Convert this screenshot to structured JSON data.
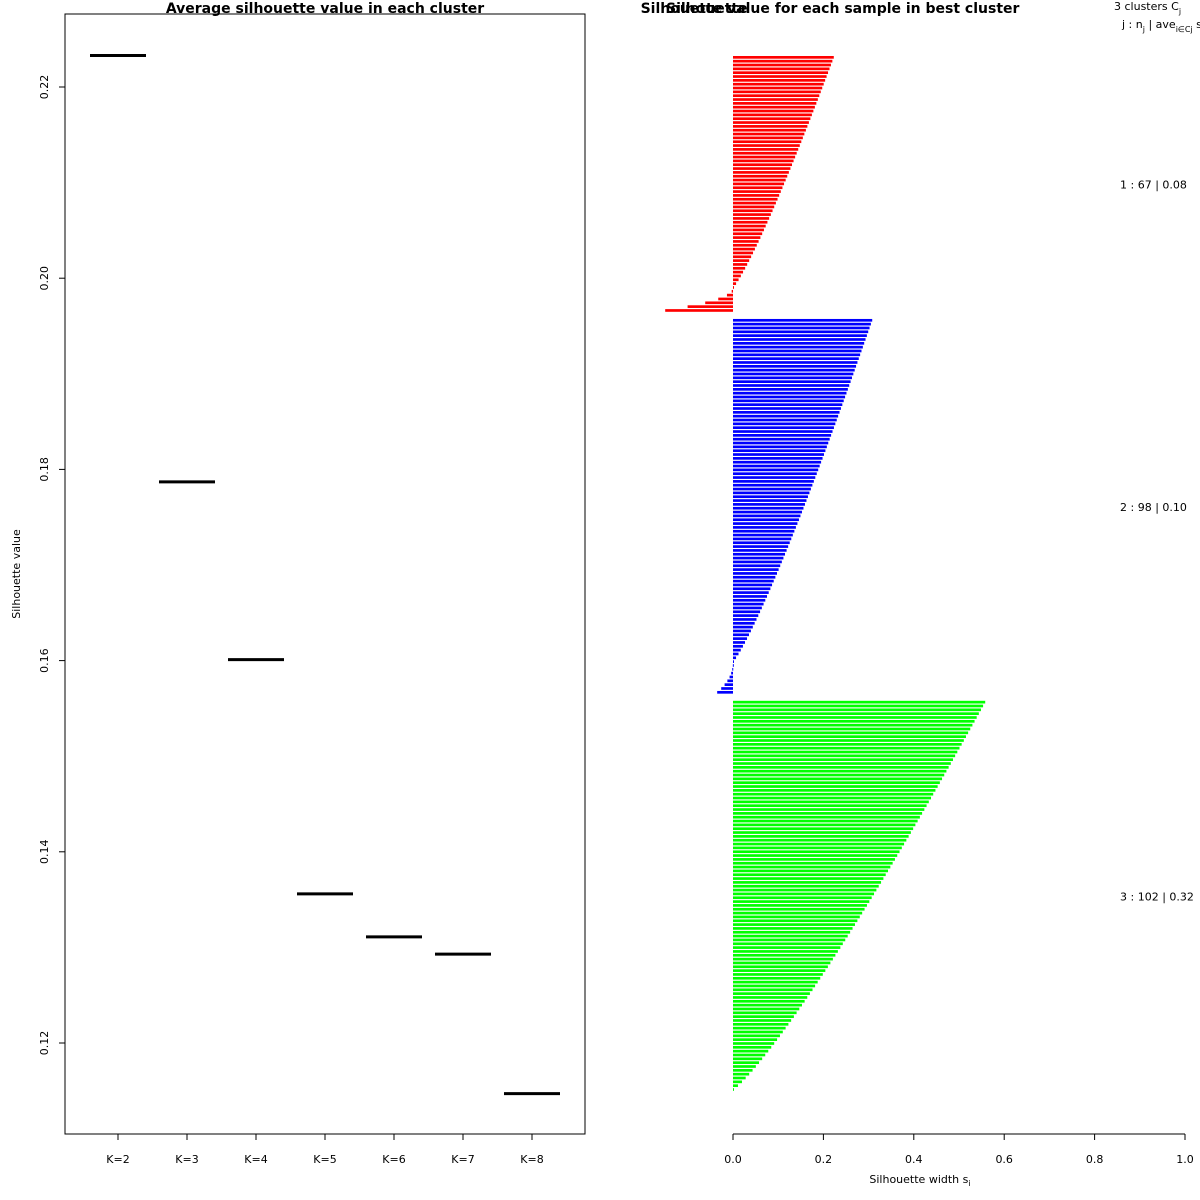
{
  "chart_data": [
    {
      "type": "scatter",
      "title": "Average silhouette value in each cluster",
      "ylabel": "Silhouette value",
      "xlabel": "",
      "categories": [
        "K=2",
        "K=3",
        "K=4",
        "K=5",
        "K=6",
        "K=7",
        "K=8"
      ],
      "values": [
        0.2233,
        0.1787,
        0.1601,
        0.1356,
        0.1311,
        0.1293,
        0.1147
      ],
      "ylim": [
        0.11,
        0.228
      ],
      "yticks": [
        0.12,
        0.14,
        0.16,
        0.18,
        0.2,
        0.22
      ],
      "ytick_labels": [
        "0.12",
        "0.14",
        "0.16",
        "0.18",
        "0.20",
        "0.22"
      ],
      "mark": "horizontal segment",
      "grid": false,
      "legend": "none"
    },
    {
      "type": "bar",
      "orientation": "horizontal",
      "title": "Silhouette value for each sample in best cluster",
      "overlap_text": "Silhouette",
      "xlabel": "Silhouette width s",
      "xlabel_subscript": "i",
      "xlim": [
        0,
        1
      ],
      "xticks": [
        0.0,
        0.2,
        0.4,
        0.6,
        0.8,
        1.0
      ],
      "xtick_labels": [
        "0.0",
        "0.2",
        "0.4",
        "0.6",
        "0.8",
        "1.0"
      ],
      "legend_header": {
        "line1": "3  clusters  C",
        "line1_sub": "j",
        "line2_a": "j :  n",
        "line2_sub_n": "j",
        "line2_b": " | ave",
        "line2_sub_ave": "i∈Cj",
        "line2_c": "  s"
      },
      "series": [
        {
          "name": "1",
          "color": "#ff0000",
          "n": 67,
          "label": "1 :   67  |  0.08",
          "max": 0.22,
          "min": -0.15,
          "n_negative": 6
        },
        {
          "name": "2",
          "color": "#0000ff",
          "n": 98,
          "label": "2 :   98  |  0.10",
          "max": 0.305,
          "min": -0.035,
          "n_negative": 8
        },
        {
          "name": "3",
          "color": "#00ff00",
          "n": 102,
          "label": "3 :   102  |  0.32",
          "max": 0.555,
          "min": 0.01,
          "n_negative": 0
        }
      ]
    }
  ]
}
